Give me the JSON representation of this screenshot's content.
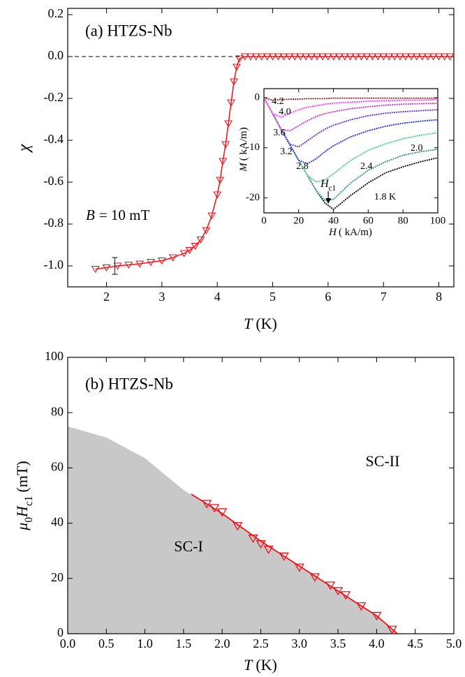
{
  "chart_data": [
    {
      "type": "line",
      "label": "(a)  HTZS-Nb",
      "field_symbol": "B",
      "field_text": "= 10 mT",
      "y_label": "χ",
      "x_label": {
        "symbol": "T",
        "unit": "(K)"
      },
      "xlim": [
        1.3,
        8.27
      ],
      "ylim": [
        -1.1,
        0.23
      ],
      "xticks": [
        2,
        3,
        4,
        5,
        6,
        7,
        8
      ],
      "yticks": [
        0.2,
        {
          "value": 0,
          "label": "0.0"
        },
        -0.2,
        -0.4,
        -0.6,
        -0.8,
        {
          "value": -1,
          "label": "-1.0"
        }
      ],
      "hline": 0,
      "color": "#e8141c",
      "marker": "triangle-down",
      "x": [
        1.8,
        2.0,
        2.2,
        2.4,
        2.6,
        2.8,
        3.0,
        3.2,
        3.4,
        3.5,
        3.6,
        3.7,
        3.8,
        3.9,
        4.0,
        4.05,
        4.1,
        4.15,
        4.2,
        4.25,
        4.3,
        4.35,
        4.4,
        4.5,
        4.6,
        4.7,
        4.8,
        4.9,
        5.0,
        5.1,
        5.2,
        5.3,
        5.4,
        5.5,
        5.6,
        5.7,
        5.8,
        5.9,
        6.0,
        6.1,
        6.2,
        6.3,
        6.4,
        6.5,
        6.6,
        6.7,
        6.8,
        6.9,
        7.0,
        7.1,
        7.2,
        7.3,
        7.4,
        7.5,
        7.6,
        7.7,
        7.8,
        7.9,
        8.0,
        8.1,
        8.2
      ],
      "values": [
        -1.015,
        -1.008,
        -1.0,
        -0.995,
        -0.99,
        -0.982,
        -0.975,
        -0.96,
        -0.94,
        -0.925,
        -0.905,
        -0.875,
        -0.83,
        -0.76,
        -0.66,
        -0.59,
        -0.5,
        -0.42,
        -0.32,
        -0.22,
        -0.12,
        -0.05,
        -0.01,
        0,
        0,
        0,
        0,
        0,
        0,
        0,
        0,
        0,
        0,
        0,
        0,
        0,
        0,
        0,
        0,
        0,
        0,
        0,
        0,
        0,
        0,
        0,
        0,
        0,
        0,
        0,
        0,
        0,
        0,
        0,
        0,
        0,
        0,
        0,
        0,
        0,
        0
      ],
      "errorbar": {
        "x": 2.15,
        "value": -1.0,
        "error": 0.04
      }
    },
    {
      "type": "line",
      "y_label": {
        "symbol": "M",
        "unit": "( kA/m)"
      },
      "x_label": {
        "symbol": "H",
        "unit": "( kA/m)"
      },
      "hc1_label": {
        "symbol": "H",
        "sub": "c1"
      },
      "hc1_x": 37,
      "xlim": [
        0,
        100
      ],
      "ylim": [
        -23,
        1.8
      ],
      "xticks": [
        0,
        20,
        40,
        60,
        80,
        100
      ],
      "yticks": [
        0,
        -10,
        -20
      ],
      "x": [
        0,
        5,
        10,
        15,
        20,
        25,
        30,
        35,
        40,
        50,
        60,
        70,
        80,
        90,
        100
      ],
      "series": [
        {
          "name": "1.8 K",
          "color": "#000000",
          "values": [
            0,
            -3.2,
            -6.4,
            -9.5,
            -12.5,
            -15.5,
            -18.5,
            -21,
            -22.3,
            -19.5,
            -17,
            -15,
            -13.8,
            -12.8,
            -12
          ]
        },
        {
          "name": "2.0",
          "color": "#2a8a8a",
          "values": [
            0,
            -3.2,
            -6.4,
            -9.5,
            -12.5,
            -15.5,
            -18.5,
            -20.5,
            -20.3,
            -17,
            -14.5,
            -12.8,
            -11.5,
            -10.8,
            -10.3
          ]
        },
        {
          "name": "2.4",
          "color": "#3cc88c",
          "values": [
            0,
            -3.2,
            -6.4,
            -9.5,
            -12.5,
            -15.5,
            -16.8,
            -16.5,
            -15.2,
            -12.5,
            -10.5,
            -9.2,
            -8.2,
            -7.5,
            -7
          ]
        },
        {
          "name": "2.8",
          "color": "#1a2ae0",
          "values": [
            0,
            -3.2,
            -6.4,
            -9.5,
            -12.5,
            -13.2,
            -12.2,
            -10.8,
            -9.6,
            -7.8,
            -6.6,
            -5.7,
            -5.1,
            -4.7,
            -4.4
          ]
        },
        {
          "name": "3.2",
          "color": "#5a2ad0",
          "values": [
            0,
            -3.2,
            -6.4,
            -9.3,
            -9.8,
            -8.6,
            -7.4,
            -6.3,
            -5.5,
            -4.4,
            -3.6,
            -3.1,
            -2.8,
            -2.6,
            -2.4
          ]
        },
        {
          "name": "3.6",
          "color": "#c030c0",
          "values": [
            0,
            -3.2,
            -6.4,
            -6.6,
            -5.6,
            -4.6,
            -3.8,
            -3.2,
            -2.8,
            -2.2,
            -1.8,
            -1.5,
            -1.3,
            -1.2,
            -1.1
          ]
        },
        {
          "name": "4.0",
          "color": "#ff30ff",
          "values": [
            0,
            -3.2,
            -3.9,
            -3.1,
            -2.4,
            -1.9,
            -1.6,
            -1.3,
            -1.1,
            -0.9,
            -0.7,
            -0.6,
            -0.5,
            -0.5,
            -0.4
          ]
        },
        {
          "name": "4.2",
          "color": "#8b1a1a",
          "values": [
            0,
            -0.5,
            -0.4,
            -0.3,
            -0.3,
            -0.2,
            -0.2,
            -0.2,
            -0.1,
            -0.1,
            -0.1,
            -0.1,
            -0.1,
            -0.1,
            -0.1
          ]
        }
      ]
    },
    {
      "type": "scatter",
      "label": "(b)  HTZS-Nb",
      "region_labels": [
        "SC-II",
        "SC-I"
      ],
      "y_label": {
        "symbol": "μ",
        "symbol_sub": "0",
        "symbol2": "H",
        "symbol2_sub": "c1",
        "unit": "(mT)"
      },
      "x_label": {
        "symbol": "T",
        "unit": "(K)"
      },
      "xlim": [
        0,
        5
      ],
      "ylim": [
        0,
        100
      ],
      "xticks": [
        {
          "value": 0,
          "label": "0.0"
        },
        0.5,
        {
          "value": 1,
          "label": "1.0"
        },
        1.5,
        {
          "value": 2,
          "label": "2.0"
        },
        2.5,
        {
          "value": 3,
          "label": "3.0"
        },
        3.5,
        {
          "value": 4,
          "label": "4.0"
        },
        4.5,
        {
          "value": 5,
          "label": "5.0"
        }
      ],
      "yticks": [
        0,
        20,
        40,
        60,
        80,
        100
      ],
      "color": "#e8141c",
      "marker": "triangle-down",
      "x": [
        1.8,
        1.9,
        2.0,
        2.2,
        2.4,
        2.5,
        2.6,
        2.8,
        3.0,
        3.2,
        3.4,
        3.5,
        3.6,
        3.8,
        4.0,
        4.2
      ],
      "values": [
        47,
        45.5,
        44,
        39,
        34.5,
        32.5,
        30.5,
        28,
        24,
        20.5,
        17.5,
        15.5,
        14,
        10,
        6.5,
        1.5
      ],
      "fit": {
        "color": "#e8141c",
        "x": [
          1.6,
          2.0,
          2.5,
          3.0,
          3.5,
          4.0,
          4.27
        ],
        "values": [
          50.5,
          43.5,
          33.5,
          24.5,
          15.5,
          6.5,
          0
        ]
      },
      "region": {
        "color": "#c8c8c8",
        "x": [
          0,
          0.5,
          1.0,
          1.5,
          2.0,
          2.5,
          3.0,
          3.5,
          4.0,
          4.27
        ],
        "values": [
          75,
          71,
          63.5,
          52,
          43.5,
          33.5,
          24.5,
          15.5,
          6.5,
          0
        ]
      }
    }
  ]
}
